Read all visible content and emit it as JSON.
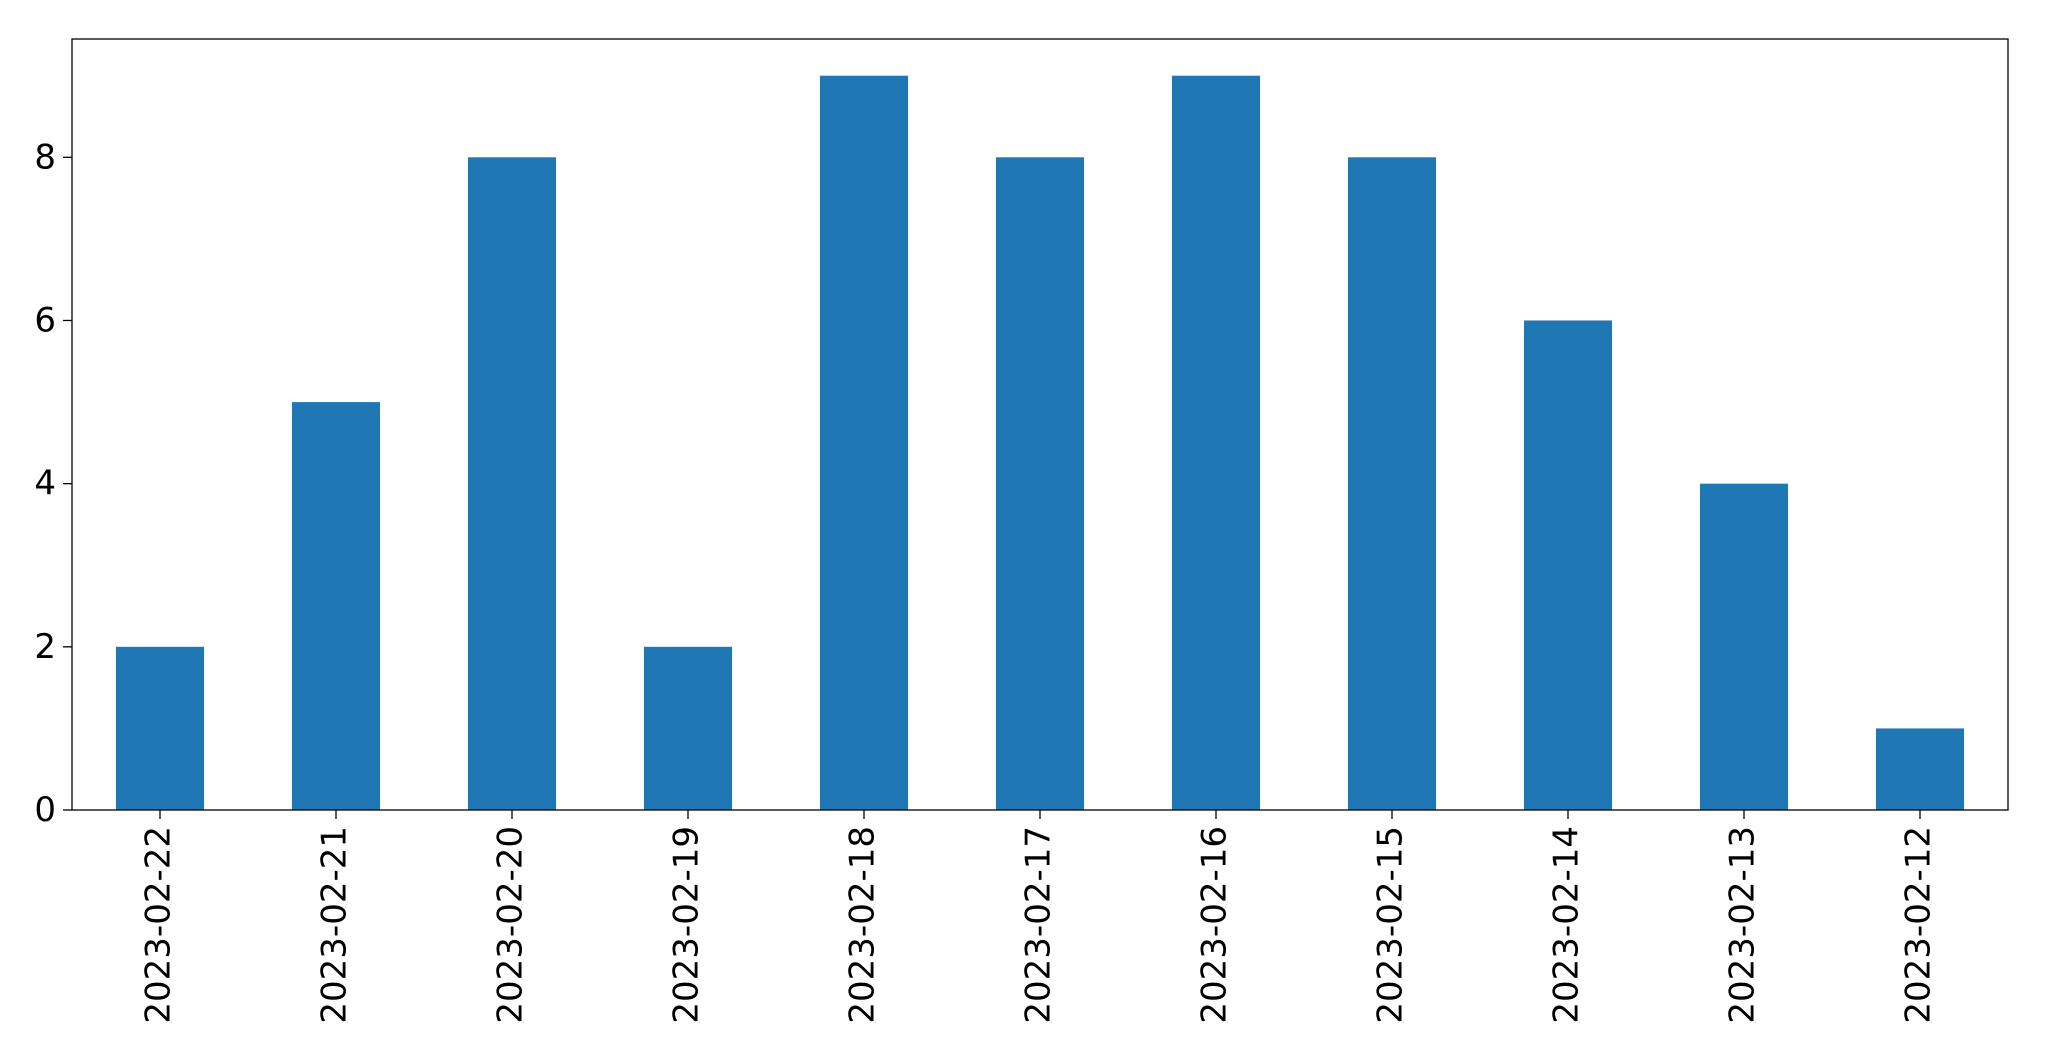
{
  "chart_data": {
    "type": "bar",
    "categories": [
      "2023-02-22",
      "2023-02-21",
      "2023-02-20",
      "2023-02-19",
      "2023-02-18",
      "2023-02-17",
      "2023-02-16",
      "2023-02-15",
      "2023-02-14",
      "2023-02-13",
      "2023-02-12"
    ],
    "values": [
      2,
      5,
      8,
      2,
      9,
      8,
      9,
      8,
      6,
      4,
      1
    ],
    "color": "#1f77b4",
    "ylim": [
      0,
      9.45
    ],
    "yticks": [
      0,
      2,
      4,
      6,
      8
    ],
    "grid": false
  }
}
